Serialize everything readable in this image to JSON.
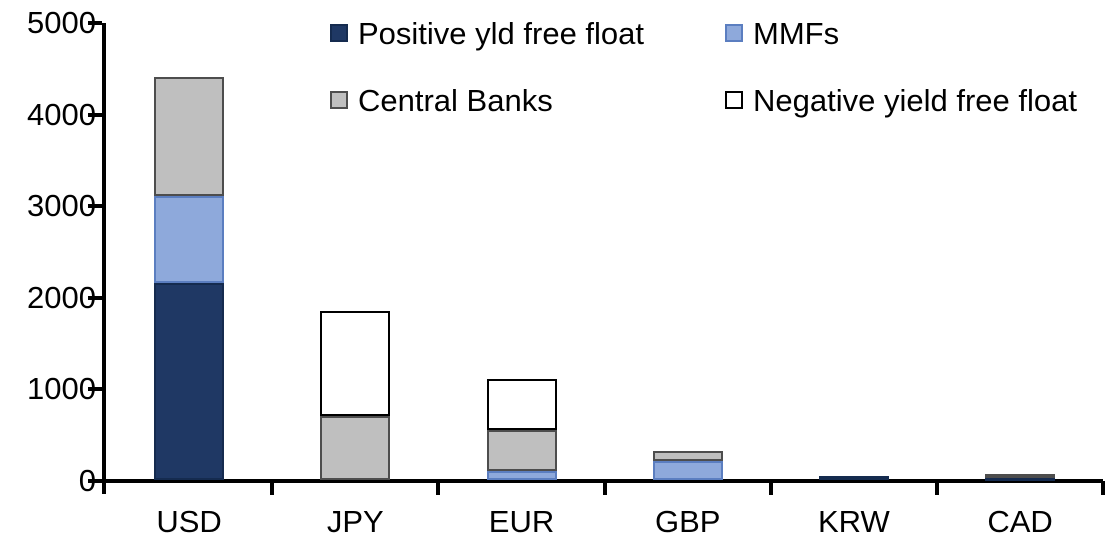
{
  "chart_data": {
    "type": "bar",
    "stacked": true,
    "title": "",
    "xlabel": "",
    "ylabel": "",
    "categories": [
      "USD",
      "JPY",
      "EUR",
      "GBP",
      "KRW",
      "CAD"
    ],
    "series": [
      {
        "name": "Positive yld free float",
        "color": "#1F3864",
        "border_color": "#152B4F",
        "values": [
          2150,
          0,
          0,
          0,
          45,
          30
        ]
      },
      {
        "name": "MMFs",
        "color": "#8EA9DB",
        "border_color": "#5B7EC0",
        "values": [
          950,
          0,
          100,
          210,
          0,
          0
        ]
      },
      {
        "name": "Central Banks",
        "color": "#BFBFBF",
        "border_color": "#4D4D4D",
        "values": [
          1300,
          700,
          450,
          110,
          0,
          35
        ]
      },
      {
        "name": "Negative yield free float",
        "color": "#FFFFFF",
        "border_color": "#000000",
        "values": [
          0,
          1140,
          550,
          0,
          0,
          0
        ]
      }
    ],
    "totals": [
      4400,
      1840,
      1100,
      320,
      45,
      65
    ],
    "ylim": [
      0,
      5000
    ],
    "ytick_step": 1000,
    "ytick_labels": [
      "0",
      "1000",
      "2000",
      "3000",
      "4000",
      "5000"
    ],
    "grid": false,
    "legend_position": "top",
    "legend_columns": 2,
    "axis_color": "#000000",
    "background_color": "#FFFFFF"
  }
}
